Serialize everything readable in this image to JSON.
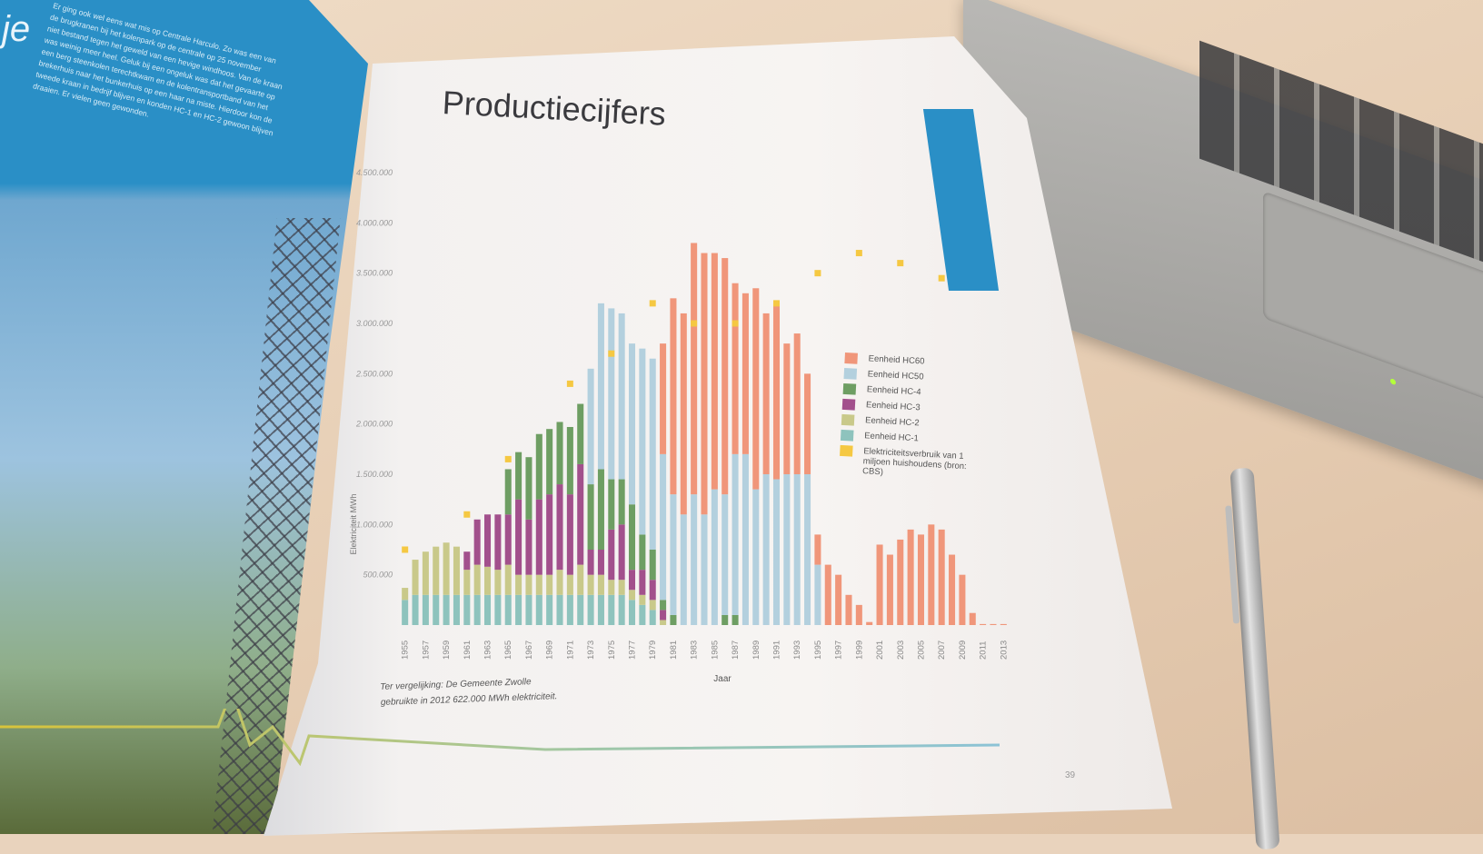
{
  "left_page": {
    "heading_fragment": "je",
    "paragraph_lines": [
      "Er ging ook wel eens wat mis op Centrale Harculo. Zo was een van",
      "de brugkranen bij het kolenpark op de centrale op 25 november",
      "niet bestand tegen het geweld van een hevige windhoos. Van de kraan",
      "was weinig meer heel. Geluk bij een ongeluk was dat het gevaarte op",
      "een berg steenkolen terechtkwam en de kolentransportband van het",
      "brekerhuis naar het bunkerhuis op een haar na miste. Hierdoor kon de",
      "tweede kraan in bedrijf blijven en konden HC-1 en HC-2 gewoon blijven",
      "draaien. Er vielen geen gewonden."
    ]
  },
  "right_page": {
    "title": "Productiecijfers",
    "note_line1": "Ter vergelijking: De Gemeente Zwolle",
    "note_line2": "gebruikte in 2012 622.000 MWh elektriciteit.",
    "page_number": "39",
    "accent_color": "#2a8fc6"
  },
  "chart_data": {
    "type": "bar",
    "stacked": true,
    "xlabel": "Jaar",
    "ylabel": "Elektriciteit MWh",
    "ylim": [
      0,
      4500000
    ],
    "yticks": [
      "500.000",
      "1.000.000",
      "1.500.000",
      "2.000.000",
      "2.500.000",
      "3.000.000",
      "3.500.000",
      "4.000.000",
      "4.500.000"
    ],
    "ytick_values": [
      500000,
      1000000,
      1500000,
      2000000,
      2500000,
      3000000,
      3500000,
      4000000,
      4500000
    ],
    "grid": false,
    "legend_position": "right",
    "x": [
      1955,
      1956,
      1957,
      1958,
      1959,
      1960,
      1961,
      1962,
      1963,
      1964,
      1965,
      1966,
      1967,
      1968,
      1969,
      1970,
      1971,
      1972,
      1973,
      1974,
      1975,
      1976,
      1977,
      1978,
      1979,
      1980,
      1981,
      1982,
      1983,
      1984,
      1985,
      1986,
      1987,
      1988,
      1989,
      1990,
      1991,
      1992,
      1993,
      1994,
      1995,
      1996,
      1997,
      1998,
      1999,
      2000,
      2001,
      2002,
      2003,
      2004,
      2005,
      2006,
      2007,
      2008,
      2009,
      2010,
      2011,
      2012,
      2013
    ],
    "xtick_labels": [
      "1955",
      "1957",
      "1959",
      "1961",
      "1963",
      "1965",
      "1967",
      "1969",
      "1971",
      "1973",
      "1975",
      "1977",
      "1979",
      "1981",
      "1983",
      "1985",
      "1987",
      "1989",
      "1991",
      "1993",
      "1995",
      "1997",
      "1999",
      "2001",
      "2003",
      "2005",
      "2007",
      "2009",
      "2011",
      "2013"
    ],
    "series": [
      {
        "name": "Eenheid HC-1",
        "color": "#8ec3bd",
        "values": [
          250000,
          300000,
          300000,
          300000,
          300000,
          300000,
          300000,
          300000,
          300000,
          300000,
          300000,
          300000,
          300000,
          300000,
          300000,
          300000,
          300000,
          300000,
          300000,
          300000,
          300000,
          300000,
          250000,
          200000,
          150000,
          0,
          0,
          0,
          0,
          0,
          0,
          0,
          0,
          0,
          0,
          0,
          0,
          0,
          0,
          0,
          0,
          0,
          0,
          0,
          0,
          0,
          0,
          0,
          0,
          0,
          0,
          0,
          0,
          0,
          0,
          0,
          0,
          0,
          0
        ]
      },
      {
        "name": "Eenheid HC-2",
        "color": "#c9c98a",
        "values": [
          120000,
          350000,
          430000,
          480000,
          520000,
          480000,
          250000,
          300000,
          280000,
          250000,
          300000,
          200000,
          200000,
          200000,
          200000,
          250000,
          200000,
          300000,
          200000,
          200000,
          150000,
          150000,
          100000,
          100000,
          100000,
          50000,
          0,
          0,
          0,
          0,
          0,
          0,
          0,
          0,
          0,
          0,
          0,
          0,
          0,
          0,
          0,
          0,
          0,
          0,
          0,
          0,
          0,
          0,
          0,
          0,
          0,
          0,
          0,
          0,
          0,
          0,
          0,
          0,
          0
        ]
      },
      {
        "name": "Eenheid HC-3",
        "color": "#a2508c",
        "values": [
          0,
          0,
          0,
          0,
          0,
          0,
          180000,
          450000,
          520000,
          550000,
          500000,
          750000,
          550000,
          750000,
          800000,
          850000,
          800000,
          1000000,
          250000,
          250000,
          500000,
          550000,
          200000,
          250000,
          200000,
          100000,
          0,
          0,
          0,
          0,
          0,
          0,
          0,
          0,
          0,
          0,
          0,
          0,
          0,
          0,
          0,
          0,
          0,
          0,
          0,
          0,
          0,
          0,
          0,
          0,
          0,
          0,
          0,
          0,
          0,
          0,
          0,
          0,
          0
        ]
      },
      {
        "name": "Eenheid HC-4",
        "color": "#6e9e63",
        "values": [
          0,
          0,
          0,
          0,
          0,
          0,
          0,
          0,
          0,
          0,
          450000,
          470000,
          620000,
          650000,
          650000,
          620000,
          670000,
          600000,
          650000,
          800000,
          500000,
          450000,
          650000,
          350000,
          300000,
          100000,
          100000,
          0,
          0,
          0,
          0,
          100000,
          100000,
          0,
          0,
          0,
          0,
          0,
          0,
          0,
          0,
          0,
          0,
          0,
          0,
          0,
          0,
          0,
          0,
          0,
          0,
          0,
          0,
          0,
          0,
          0,
          0,
          0,
          0
        ]
      },
      {
        "name": "Eenheid HC50",
        "color": "#b3d0de",
        "values": [
          0,
          0,
          0,
          0,
          0,
          0,
          0,
          0,
          0,
          0,
          0,
          0,
          0,
          0,
          0,
          0,
          0,
          0,
          1150000,
          1650000,
          1700000,
          1650000,
          1600000,
          1850000,
          1900000,
          1450000,
          1200000,
          1100000,
          1300000,
          1100000,
          1350000,
          1200000,
          1600000,
          1700000,
          1350000,
          1500000,
          1450000,
          1500000,
          1500000,
          1500000,
          600000,
          0,
          0,
          0,
          0,
          0,
          0,
          0,
          0,
          0,
          0,
          0,
          0,
          0,
          0,
          0,
          0,
          0,
          0
        ]
      },
      {
        "name": "Eenheid HC60",
        "color": "#f0967a",
        "values": [
          0,
          0,
          0,
          0,
          0,
          0,
          0,
          0,
          0,
          0,
          0,
          0,
          0,
          0,
          0,
          0,
          0,
          0,
          0,
          0,
          0,
          0,
          0,
          0,
          0,
          1100000,
          1950000,
          2000000,
          2500000,
          2600000,
          2350000,
          2350000,
          1700000,
          1600000,
          2000000,
          1600000,
          1750000,
          1300000,
          1400000,
          1000000,
          300000,
          600000,
          500000,
          300000,
          200000,
          30000,
          800000,
          700000,
          850000,
          950000,
          900000,
          1000000,
          950000,
          700000,
          500000,
          120000,
          10000,
          10000,
          10000
        ]
      }
    ],
    "households": {
      "name": "Elektriciteitsverbruik van 1 miljoen huishoudens (bron: CBS)",
      "color": "#f5c842",
      "x": [
        1955,
        1961,
        1965,
        1971,
        1975,
        1979,
        1983,
        1987,
        1991,
        1995,
        1999,
        2003,
        2007
      ],
      "values": [
        750000,
        1100000,
        1650000,
        2400000,
        2700000,
        3200000,
        3000000,
        3000000,
        3200000,
        3500000,
        3700000,
        3600000,
        3450000
      ]
    }
  }
}
